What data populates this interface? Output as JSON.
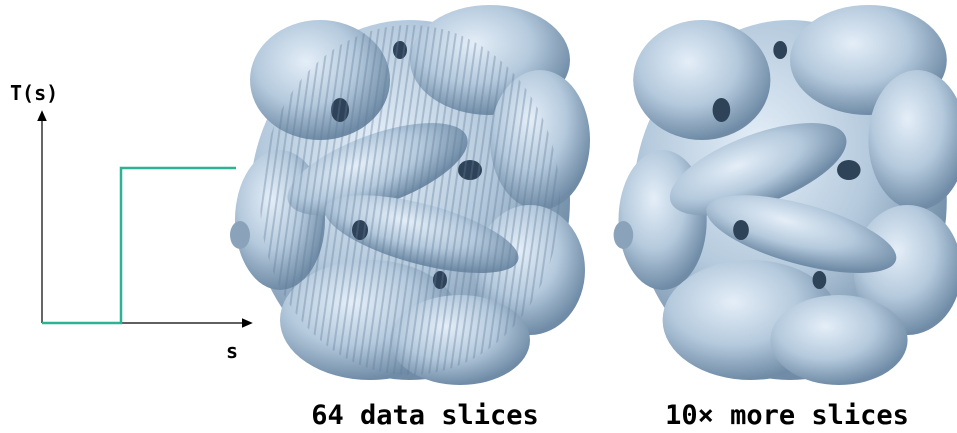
{
  "plot": {
    "y_label": "T(s)",
    "x_label": "s"
  },
  "panels": [
    {
      "caption": "64 data slices"
    },
    {
      "caption": "10× more slices"
    }
  ]
}
